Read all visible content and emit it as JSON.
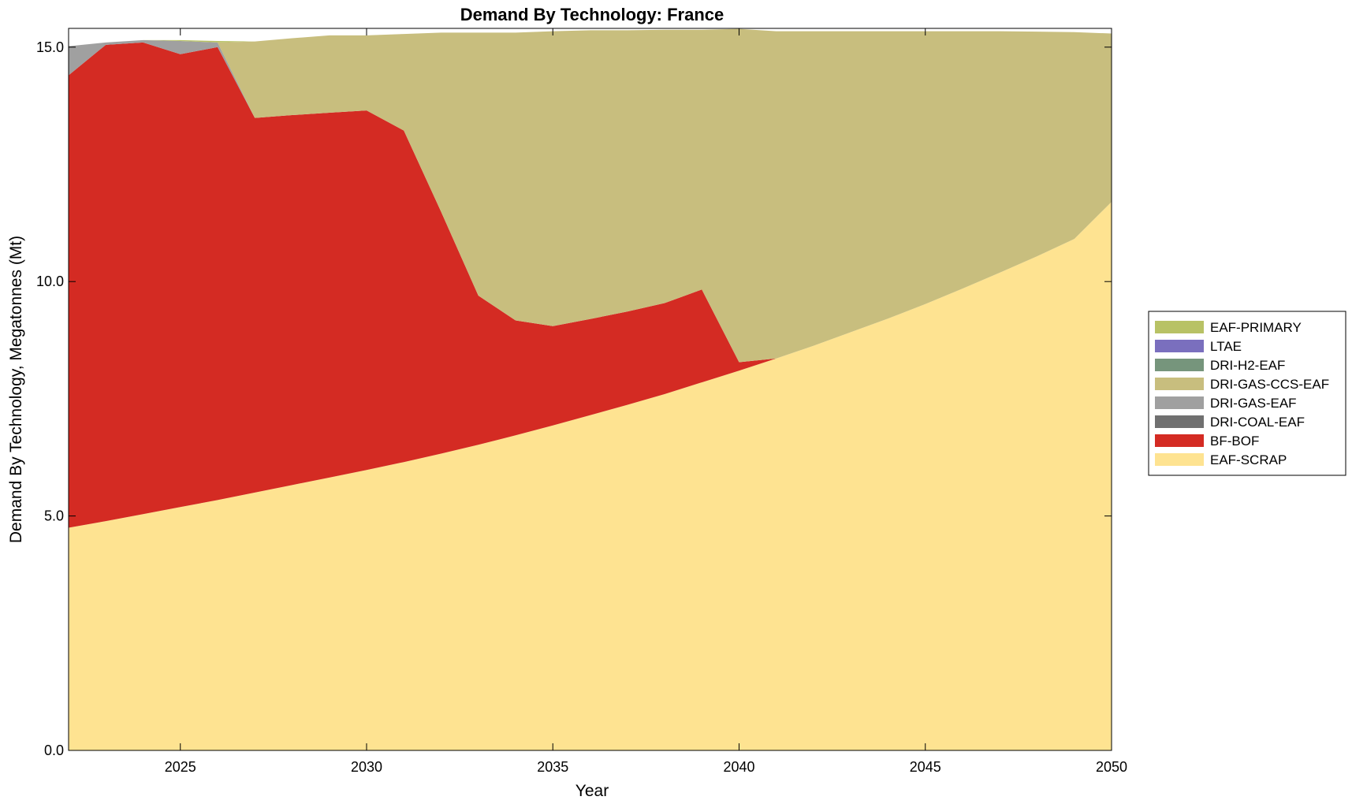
{
  "chart_data": {
    "type": "area",
    "stacked": true,
    "title": "Demand By Technology: France",
    "xlabel": "Year",
    "ylabel": "Demand By Technology, Megatonnes (Mt)",
    "xlim": [
      2022,
      2050
    ],
    "ylim": [
      0,
      15.4
    ],
    "xticks": [
      2025,
      2030,
      2035,
      2040,
      2045,
      2050
    ],
    "xtick_labels": [
      "2025",
      "2030",
      "2035",
      "2040",
      "2045",
      "2050"
    ],
    "yticks": [
      0,
      5,
      10,
      15
    ],
    "ytick_labels": [
      "0.0",
      "5.0",
      "10.0",
      "15.0"
    ],
    "grid": false,
    "legend_position": "right",
    "x": [
      2022,
      2023,
      2024,
      2025,
      2026,
      2027,
      2028,
      2029,
      2030,
      2031,
      2032,
      2033,
      2034,
      2035,
      2036,
      2037,
      2038,
      2039,
      2040,
      2041,
      2042,
      2043,
      2044,
      2045,
      2046,
      2047,
      2048,
      2049,
      2050
    ],
    "series": [
      {
        "name": "EAF-SCRAP",
        "color": "#FEE391",
        "values": [
          4.75,
          4.89,
          5.04,
          5.19,
          5.34,
          5.5,
          5.66,
          5.82,
          5.98,
          6.15,
          6.33,
          6.52,
          6.72,
          6.93,
          7.15,
          7.37,
          7.6,
          7.85,
          8.1,
          8.36,
          8.63,
          8.92,
          9.21,
          9.52,
          9.85,
          10.19,
          10.54,
          10.91,
          11.7
        ]
      },
      {
        "name": "BF-BOF",
        "color": "#D42B23",
        "values": [
          9.65,
          10.16,
          10.06,
          9.66,
          9.66,
          7.99,
          7.89,
          7.78,
          7.67,
          7.07,
          5.16,
          3.18,
          2.45,
          2.12,
          2.05,
          1.99,
          1.94,
          1.98,
          0.18,
          0,
          0,
          0,
          0,
          0,
          0,
          0,
          0,
          0,
          0
        ]
      },
      {
        "name": "DRI-COAL-EAF",
        "color": "#707070",
        "values": [
          0,
          0,
          0,
          0,
          0,
          0,
          0,
          0,
          0,
          0,
          0,
          0,
          0,
          0,
          0,
          0,
          0,
          0,
          0,
          0,
          0,
          0,
          0,
          0,
          0,
          0,
          0,
          0,
          0
        ]
      },
      {
        "name": "DRI-GAS-EAF",
        "color": "#A0A0A0",
        "values": [
          0.62,
          0.05,
          0.05,
          0.28,
          0.1,
          0,
          0,
          0,
          0,
          0,
          0,
          0,
          0,
          0,
          0,
          0,
          0,
          0,
          0,
          0,
          0,
          0,
          0,
          0,
          0,
          0,
          0,
          0,
          0
        ]
      },
      {
        "name": "DRI-GAS-CCS-EAF",
        "color": "#C8BE7E",
        "values": [
          0,
          0,
          0,
          0,
          0,
          1.63,
          1.64,
          1.65,
          1.6,
          2.06,
          3.82,
          5.61,
          6.14,
          6.29,
          6.16,
          6.0,
          5.83,
          5.54,
          7.11,
          6.98,
          6.71,
          6.42,
          6.13,
          5.82,
          5.49,
          5.15,
          4.79,
          4.41,
          3.59
        ]
      },
      {
        "name": "DRI-H2-EAF",
        "color": "#76957C",
        "values": [
          0,
          0,
          0,
          0,
          0,
          0,
          0,
          0,
          0,
          0,
          0,
          0,
          0,
          0,
          0,
          0,
          0,
          0,
          0,
          0,
          0,
          0,
          0,
          0,
          0,
          0,
          0,
          0,
          0
        ]
      },
      {
        "name": "LTAE",
        "color": "#7A6FBE",
        "values": [
          0,
          0,
          0,
          0,
          0,
          0,
          0,
          0,
          0,
          0,
          0,
          0,
          0,
          0,
          0,
          0,
          0,
          0,
          0,
          0,
          0,
          0,
          0,
          0,
          0,
          0,
          0,
          0,
          0
        ]
      },
      {
        "name": "EAF-PRIMARY",
        "color": "#B8C265",
        "values": [
          0,
          0,
          0,
          0.02,
          0.03,
          0,
          0,
          0,
          0,
          0,
          0,
          0,
          0,
          0,
          0,
          0,
          0,
          0,
          0,
          0,
          0,
          0,
          0,
          0,
          0,
          0,
          0,
          0,
          0
        ]
      }
    ],
    "legend_order": [
      "EAF-PRIMARY",
      "LTAE",
      "DRI-H2-EAF",
      "DRI-GAS-CCS-EAF",
      "DRI-GAS-EAF",
      "DRI-COAL-EAF",
      "BF-BOF",
      "EAF-SCRAP"
    ]
  }
}
